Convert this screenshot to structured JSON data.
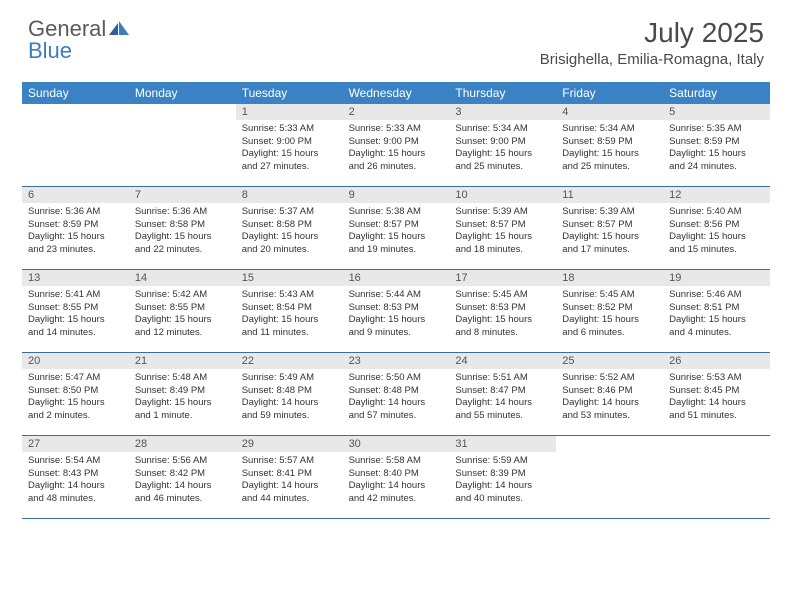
{
  "brand": {
    "part1": "General",
    "part2": "Blue"
  },
  "title": "July 2025",
  "location": "Brisighella, Emilia-Romagna, Italy",
  "colors": {
    "header_bg": "#3b82c4",
    "header_text": "#ffffff",
    "daynum_bg": "#e8e8e8",
    "daynum_text": "#555555",
    "body_text": "#333333",
    "week_border": "#3b6ea0",
    "brand_gray": "#5a5a5a",
    "brand_blue": "#3b7dbf",
    "title_color": "#4a4a4a"
  },
  "day_names": [
    "Sunday",
    "Monday",
    "Tuesday",
    "Wednesday",
    "Thursday",
    "Friday",
    "Saturday"
  ],
  "weeks": [
    [
      {
        "n": "",
        "sr": "",
        "ss": "",
        "dl": ""
      },
      {
        "n": "",
        "sr": "",
        "ss": "",
        "dl": ""
      },
      {
        "n": "1",
        "sr": "Sunrise: 5:33 AM",
        "ss": "Sunset: 9:00 PM",
        "dl": "Daylight: 15 hours and 27 minutes."
      },
      {
        "n": "2",
        "sr": "Sunrise: 5:33 AM",
        "ss": "Sunset: 9:00 PM",
        "dl": "Daylight: 15 hours and 26 minutes."
      },
      {
        "n": "3",
        "sr": "Sunrise: 5:34 AM",
        "ss": "Sunset: 9:00 PM",
        "dl": "Daylight: 15 hours and 25 minutes."
      },
      {
        "n": "4",
        "sr": "Sunrise: 5:34 AM",
        "ss": "Sunset: 8:59 PM",
        "dl": "Daylight: 15 hours and 25 minutes."
      },
      {
        "n": "5",
        "sr": "Sunrise: 5:35 AM",
        "ss": "Sunset: 8:59 PM",
        "dl": "Daylight: 15 hours and 24 minutes."
      }
    ],
    [
      {
        "n": "6",
        "sr": "Sunrise: 5:36 AM",
        "ss": "Sunset: 8:59 PM",
        "dl": "Daylight: 15 hours and 23 minutes."
      },
      {
        "n": "7",
        "sr": "Sunrise: 5:36 AM",
        "ss": "Sunset: 8:58 PM",
        "dl": "Daylight: 15 hours and 22 minutes."
      },
      {
        "n": "8",
        "sr": "Sunrise: 5:37 AM",
        "ss": "Sunset: 8:58 PM",
        "dl": "Daylight: 15 hours and 20 minutes."
      },
      {
        "n": "9",
        "sr": "Sunrise: 5:38 AM",
        "ss": "Sunset: 8:57 PM",
        "dl": "Daylight: 15 hours and 19 minutes."
      },
      {
        "n": "10",
        "sr": "Sunrise: 5:39 AM",
        "ss": "Sunset: 8:57 PM",
        "dl": "Daylight: 15 hours and 18 minutes."
      },
      {
        "n": "11",
        "sr": "Sunrise: 5:39 AM",
        "ss": "Sunset: 8:57 PM",
        "dl": "Daylight: 15 hours and 17 minutes."
      },
      {
        "n": "12",
        "sr": "Sunrise: 5:40 AM",
        "ss": "Sunset: 8:56 PM",
        "dl": "Daylight: 15 hours and 15 minutes."
      }
    ],
    [
      {
        "n": "13",
        "sr": "Sunrise: 5:41 AM",
        "ss": "Sunset: 8:55 PM",
        "dl": "Daylight: 15 hours and 14 minutes."
      },
      {
        "n": "14",
        "sr": "Sunrise: 5:42 AM",
        "ss": "Sunset: 8:55 PM",
        "dl": "Daylight: 15 hours and 12 minutes."
      },
      {
        "n": "15",
        "sr": "Sunrise: 5:43 AM",
        "ss": "Sunset: 8:54 PM",
        "dl": "Daylight: 15 hours and 11 minutes."
      },
      {
        "n": "16",
        "sr": "Sunrise: 5:44 AM",
        "ss": "Sunset: 8:53 PM",
        "dl": "Daylight: 15 hours and 9 minutes."
      },
      {
        "n": "17",
        "sr": "Sunrise: 5:45 AM",
        "ss": "Sunset: 8:53 PM",
        "dl": "Daylight: 15 hours and 8 minutes."
      },
      {
        "n": "18",
        "sr": "Sunrise: 5:45 AM",
        "ss": "Sunset: 8:52 PM",
        "dl": "Daylight: 15 hours and 6 minutes."
      },
      {
        "n": "19",
        "sr": "Sunrise: 5:46 AM",
        "ss": "Sunset: 8:51 PM",
        "dl": "Daylight: 15 hours and 4 minutes."
      }
    ],
    [
      {
        "n": "20",
        "sr": "Sunrise: 5:47 AM",
        "ss": "Sunset: 8:50 PM",
        "dl": "Daylight: 15 hours and 2 minutes."
      },
      {
        "n": "21",
        "sr": "Sunrise: 5:48 AM",
        "ss": "Sunset: 8:49 PM",
        "dl": "Daylight: 15 hours and 1 minute."
      },
      {
        "n": "22",
        "sr": "Sunrise: 5:49 AM",
        "ss": "Sunset: 8:48 PM",
        "dl": "Daylight: 14 hours and 59 minutes."
      },
      {
        "n": "23",
        "sr": "Sunrise: 5:50 AM",
        "ss": "Sunset: 8:48 PM",
        "dl": "Daylight: 14 hours and 57 minutes."
      },
      {
        "n": "24",
        "sr": "Sunrise: 5:51 AM",
        "ss": "Sunset: 8:47 PM",
        "dl": "Daylight: 14 hours and 55 minutes."
      },
      {
        "n": "25",
        "sr": "Sunrise: 5:52 AM",
        "ss": "Sunset: 8:46 PM",
        "dl": "Daylight: 14 hours and 53 minutes."
      },
      {
        "n": "26",
        "sr": "Sunrise: 5:53 AM",
        "ss": "Sunset: 8:45 PM",
        "dl": "Daylight: 14 hours and 51 minutes."
      }
    ],
    [
      {
        "n": "27",
        "sr": "Sunrise: 5:54 AM",
        "ss": "Sunset: 8:43 PM",
        "dl": "Daylight: 14 hours and 48 minutes."
      },
      {
        "n": "28",
        "sr": "Sunrise: 5:56 AM",
        "ss": "Sunset: 8:42 PM",
        "dl": "Daylight: 14 hours and 46 minutes."
      },
      {
        "n": "29",
        "sr": "Sunrise: 5:57 AM",
        "ss": "Sunset: 8:41 PM",
        "dl": "Daylight: 14 hours and 44 minutes."
      },
      {
        "n": "30",
        "sr": "Sunrise: 5:58 AM",
        "ss": "Sunset: 8:40 PM",
        "dl": "Daylight: 14 hours and 42 minutes."
      },
      {
        "n": "31",
        "sr": "Sunrise: 5:59 AM",
        "ss": "Sunset: 8:39 PM",
        "dl": "Daylight: 14 hours and 40 minutes."
      },
      {
        "n": "",
        "sr": "",
        "ss": "",
        "dl": ""
      },
      {
        "n": "",
        "sr": "",
        "ss": "",
        "dl": ""
      }
    ]
  ]
}
